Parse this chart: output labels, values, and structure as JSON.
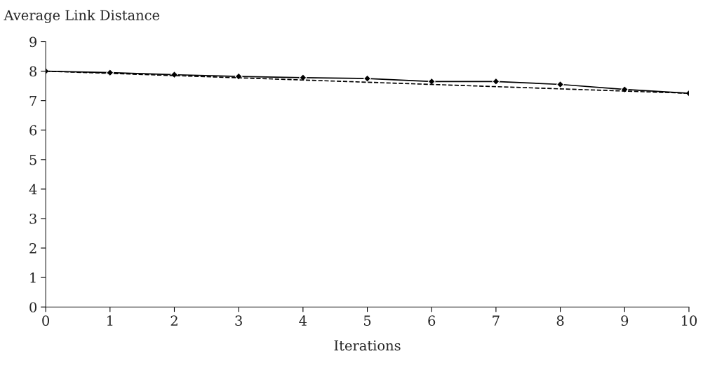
{
  "chart_data": {
    "type": "line",
    "ylabel": "Average Link Distance",
    "xlabel": "Iterations",
    "x": [
      0,
      1,
      2,
      3,
      4,
      5,
      6,
      7,
      8,
      9,
      10
    ],
    "series": [
      {
        "color": "#000000",
        "values": [
          8.0,
          7.95,
          7.88,
          7.82,
          7.78,
          7.75,
          7.65,
          7.65,
          7.55,
          7.38,
          7.25
        ],
        "marker": "diamond",
        "line_style": "solid"
      },
      {
        "color": "#000000",
        "x": [
          0,
          10
        ],
        "values": [
          8.0,
          7.25
        ],
        "marker": "none",
        "line_style": "dashed"
      }
    ],
    "xlim": [
      0,
      10
    ],
    "xticks": [
      0,
      1,
      2,
      3,
      4,
      5,
      6,
      7,
      8,
      9,
      10
    ],
    "ylim": [
      0,
      9
    ],
    "yticks": [
      0,
      1,
      2,
      3,
      4,
      5,
      6,
      7,
      8,
      9
    ],
    "grid": false,
    "legend": false
  }
}
